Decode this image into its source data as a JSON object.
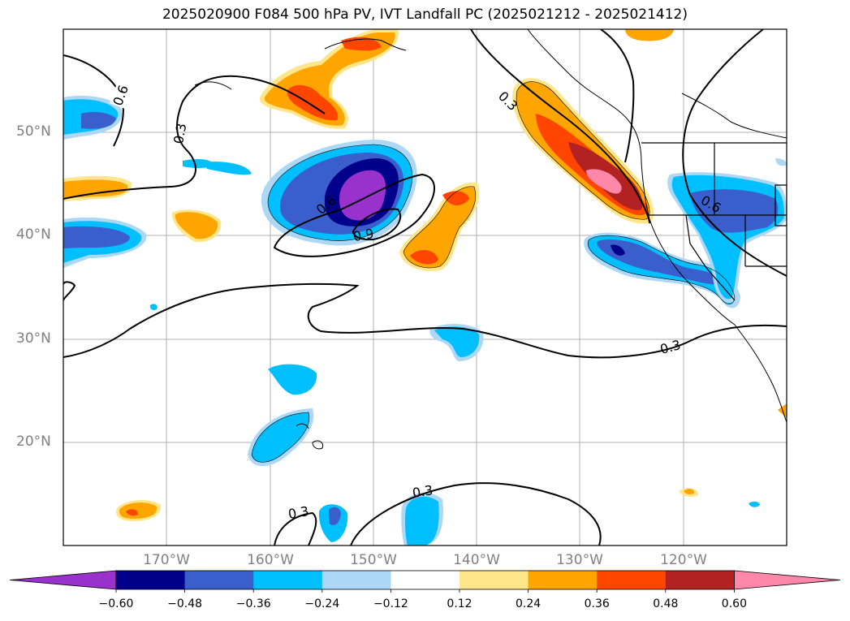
{
  "title": "2025020900 F084 500 hPa PV, IVT Landfall PC (2025021212 - 2025021412)",
  "lat_labels": [
    "50°N",
    "40°N",
    "30°N",
    "20°N"
  ],
  "lon_labels": [
    "170°W",
    "160°W",
    "150°W",
    "140°W",
    "130°W",
    "120°W"
  ],
  "contour_labels": [
    "0.6",
    "0.3",
    "0.6",
    "0.9",
    "0.3",
    "0.6",
    "0.3",
    "0.3",
    "0.3"
  ],
  "colorbar": {
    "ticks": [
      "−0.60",
      "−0.48",
      "−0.36",
      "−0.24",
      "−0.12",
      "0.12",
      "0.24",
      "0.36",
      "0.48",
      "0.60"
    ],
    "colors": [
      "#9932cc",
      "#00008b",
      "#3a5fcd",
      "#00bfff",
      "#add8f5",
      "#ffffff",
      "#ffe68a",
      "#ffa500",
      "#ff4500",
      "#b22222",
      "#ff88aa"
    ]
  }
}
